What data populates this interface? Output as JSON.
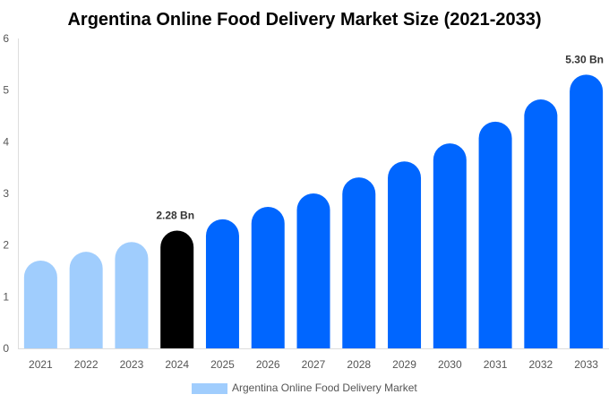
{
  "chart_data": {
    "type": "bar",
    "title": "Argentina Online Food Delivery Market Size (2021-2033)",
    "xlabel": "",
    "ylabel": "",
    "categories": [
      "2021",
      "2022",
      "2023",
      "2024",
      "2025",
      "2026",
      "2027",
      "2028",
      "2029",
      "2030",
      "2031",
      "2032",
      "2033"
    ],
    "series": [
      {
        "name": "Argentina Online Food Delivery Market",
        "values": [
          1.7,
          1.87,
          2.06,
          2.28,
          2.5,
          2.74,
          3.0,
          3.31,
          3.62,
          3.97,
          4.39,
          4.82,
          5.3
        ]
      }
    ],
    "ylim": [
      0,
      6
    ],
    "yticks": [
      "0",
      "1",
      "2",
      "3",
      "4",
      "5",
      "6"
    ],
    "data_labels": [
      {
        "category": "2024",
        "text": "2.28 Bn"
      },
      {
        "category": "2033",
        "text": "5.30 Bn"
      }
    ],
    "bar_colors": {
      "historical": "#a0cdfd",
      "base_year": "#000000",
      "forecast": "#0066ff"
    },
    "base_year": "2024",
    "grid": false,
    "legend_position": "bottom"
  }
}
